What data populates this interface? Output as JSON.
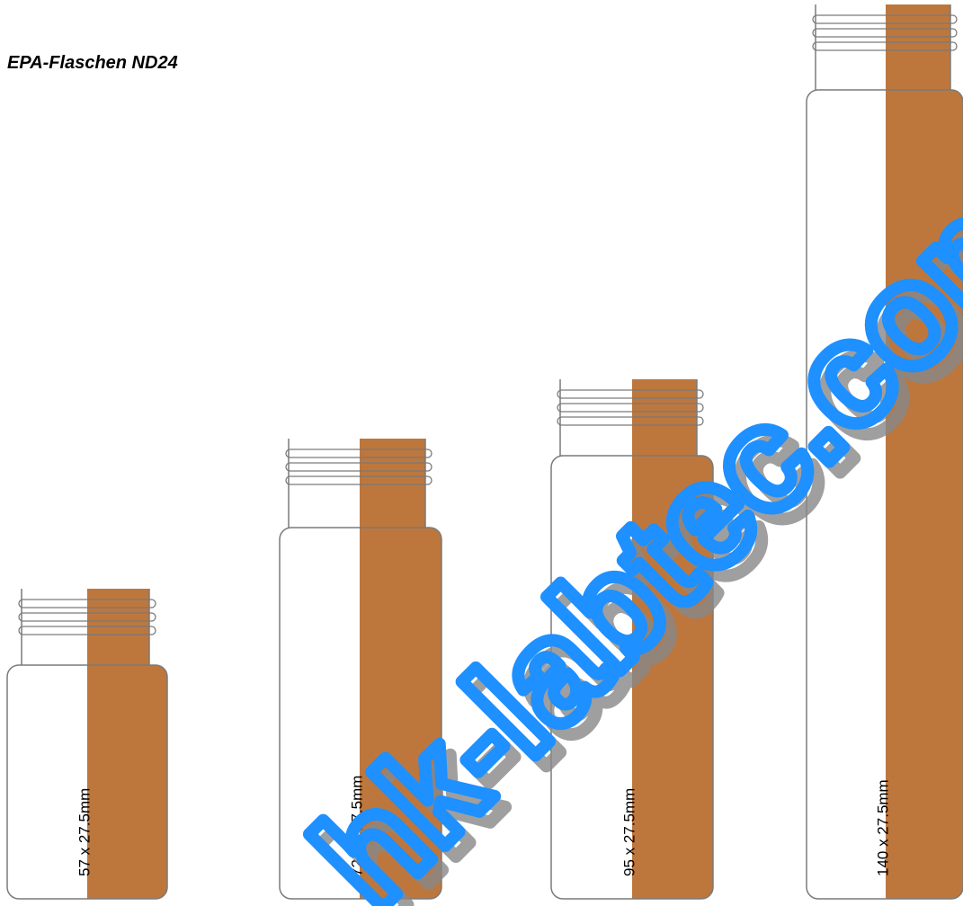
{
  "title": "EPA-Flaschen ND24",
  "vials": [
    {
      "label": "57 x 27.5mm"
    },
    {
      "label": "72,5 x 27.5mm"
    },
    {
      "label": "95 x 27.5mm"
    },
    {
      "label": "140 x 27.5mm"
    }
  ],
  "watermark": "hk-labtec.com"
}
